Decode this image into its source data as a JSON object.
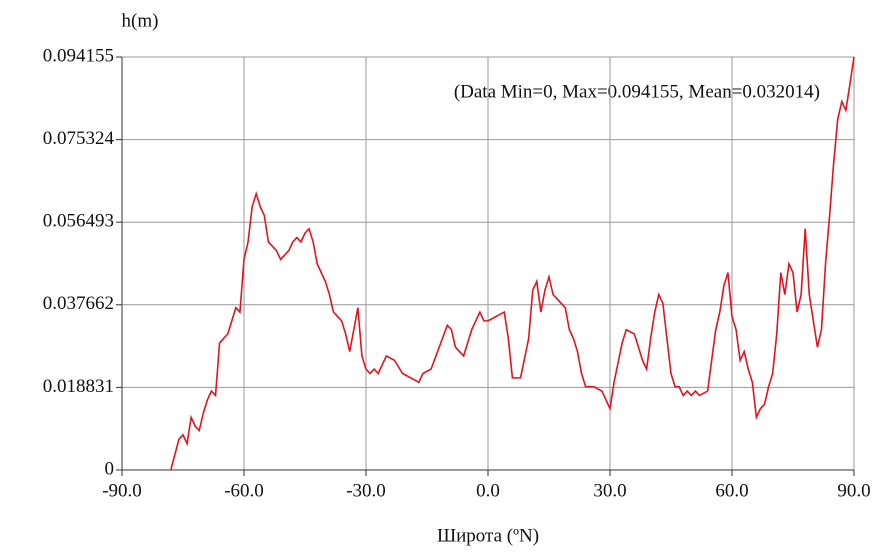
{
  "chart_data": {
    "type": "line",
    "title": "h(m)",
    "x_label": "Широта (ºN)",
    "annotation": "(Data Min=0, Max=0.094155, Mean=0.032014)",
    "xlim": [
      -90,
      90
    ],
    "xticks": [
      {
        "value": -90,
        "label": "-90.0"
      },
      {
        "value": -60,
        "label": "-60.0"
      },
      {
        "value": -30,
        "label": "-30.0"
      },
      {
        "value": 0,
        "label": "0.0"
      },
      {
        "value": 30,
        "label": "30.0"
      },
      {
        "value": 60,
        "label": "60.0"
      },
      {
        "value": 90,
        "label": "90.0"
      }
    ],
    "ylim": [
      0,
      0.094155
    ],
    "yticks": [
      0,
      0.018831,
      0.037662,
      0.056493,
      0.075324,
      0.094155
    ],
    "grid": true,
    "series": [
      {
        "color": "#e0141e",
        "x": [
          -78,
          -76,
          -75,
          -74,
          -73,
          -72,
          -71,
          -70,
          -69,
          -68,
          -67,
          -66,
          -65,
          -64,
          -63,
          -62,
          -61,
          -60,
          -59,
          -58,
          -57,
          -56,
          -55,
          -54,
          -53,
          -52,
          -51,
          -50,
          -49,
          -48,
          -47,
          -46,
          -45,
          -44,
          -43,
          -42,
          -41,
          -40,
          -39,
          -38,
          -36,
          -35,
          -34,
          -33,
          -32,
          -31,
          -30,
          -29,
          -28,
          -27,
          -25,
          -23,
          -21,
          -19,
          -17,
          -16,
          -14,
          -12,
          -10,
          -9,
          -8,
          -6,
          -4,
          -2,
          -1,
          0,
          2,
          4,
          5,
          6,
          8,
          10,
          11,
          12,
          13,
          14,
          15,
          16,
          17,
          18,
          19,
          20,
          21,
          22,
          23,
          24,
          26,
          28,
          29,
          30,
          31,
          33,
          34,
          36,
          37,
          38,
          39,
          40,
          41,
          42,
          43,
          44,
          45,
          46,
          47,
          48,
          49,
          50,
          51,
          52,
          54,
          55,
          56,
          57,
          58,
          59,
          60,
          61,
          62,
          63,
          64,
          65,
          66,
          67,
          68,
          69,
          70,
          71,
          72,
          73,
          74,
          75,
          76,
          77,
          78,
          79,
          80,
          81,
          82,
          83,
          84,
          85,
          86,
          87,
          88,
          89,
          90
        ],
        "values": [
          0,
          0.007,
          0.008,
          0.006,
          0.012,
          0.01,
          0.009,
          0.013,
          0.016,
          0.018,
          0.017,
          0.029,
          0.03,
          0.031,
          0.034,
          0.037,
          0.036,
          0.048,
          0.052,
          0.06,
          0.063,
          0.06,
          0.058,
          0.052,
          0.051,
          0.05,
          0.048,
          0.049,
          0.05,
          0.052,
          0.053,
          0.052,
          0.054,
          0.055,
          0.052,
          0.047,
          0.045,
          0.043,
          0.04,
          0.036,
          0.034,
          0.031,
          0.027,
          0.032,
          0.037,
          0.026,
          0.023,
          0.022,
          0.023,
          0.022,
          0.026,
          0.025,
          0.022,
          0.021,
          0.02,
          0.022,
          0.023,
          0.028,
          0.033,
          0.032,
          0.028,
          0.026,
          0.032,
          0.036,
          0.034,
          0.034,
          0.035,
          0.036,
          0.03,
          0.021,
          0.021,
          0.03,
          0.041,
          0.043,
          0.036,
          0.041,
          0.044,
          0.04,
          0.039,
          0.038,
          0.037,
          0.032,
          0.03,
          0.027,
          0.022,
          0.019,
          0.019,
          0.018,
          0.016,
          0.014,
          0.02,
          0.029,
          0.032,
          0.031,
          0.028,
          0.025,
          0.023,
          0.03,
          0.036,
          0.04,
          0.038,
          0.03,
          0.022,
          0.019,
          0.019,
          0.017,
          0.018,
          0.017,
          0.018,
          0.017,
          0.018,
          0.025,
          0.032,
          0.036,
          0.042,
          0.045,
          0.035,
          0.032,
          0.025,
          0.027,
          0.023,
          0.02,
          0.012,
          0.014,
          0.015,
          0.019,
          0.022,
          0.031,
          0.045,
          0.04,
          0.047,
          0.045,
          0.036,
          0.04,
          0.055,
          0.04,
          0.034,
          0.028,
          0.032,
          0.047,
          0.058,
          0.07,
          0.08,
          0.084,
          0.082,
          0.088,
          0.094155
        ]
      }
    ]
  }
}
